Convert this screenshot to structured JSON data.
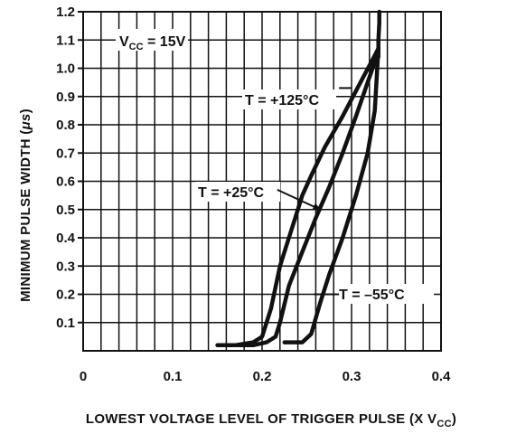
{
  "chart_data": {
    "type": "line",
    "xlabel": "LOWEST VOLTAGE LEVEL OF TRIGGER PULSE (X V",
    "xlabel_sub": "CC",
    "xlabel_end": ")",
    "ylabel": "MINIMUM PULSE WIDTH (",
    "ylabel_unit": "μs",
    "ylabel_end": ")",
    "xlim": [
      0,
      0.4
    ],
    "ylim": [
      0,
      1.2
    ],
    "x_ticks": [
      0,
      0.1,
      0.2,
      0.3,
      0.4
    ],
    "x_tick_labels": [
      "0",
      "0.1",
      "0.2",
      "0.3",
      "0.4"
    ],
    "y_ticks": [
      0.1,
      0.2,
      0.3,
      0.4,
      0.5,
      0.6,
      0.7,
      0.8,
      0.9,
      1.0,
      1.1,
      1.2
    ],
    "y_tick_labels": [
      "0.1",
      "0.2",
      "0.3",
      "0.4",
      "0.5",
      "0.6",
      "0.7",
      "0.8",
      "0.9",
      "1.0",
      "1.1",
      "1.2"
    ],
    "grid": true,
    "condition": {
      "main": "V",
      "sub": "CC",
      "rest": " = 15V"
    },
    "series": [
      {
        "name": "T = +125°C",
        "x": [
          0.15,
          0.17,
          0.19,
          0.2,
          0.21,
          0.22,
          0.23,
          0.24,
          0.245,
          0.255,
          0.27,
          0.29,
          0.31,
          0.325,
          0.33
        ],
        "y": [
          0.02,
          0.02,
          0.03,
          0.05,
          0.15,
          0.3,
          0.4,
          0.5,
          0.55,
          0.62,
          0.72,
          0.83,
          0.95,
          1.04,
          1.07
        ]
      },
      {
        "name": "T = +25°C",
        "x": [
          0.17,
          0.19,
          0.205,
          0.215,
          0.22,
          0.23,
          0.245,
          0.26,
          0.275,
          0.29,
          0.305,
          0.318,
          0.328,
          0.33
        ],
        "y": [
          0.02,
          0.02,
          0.03,
          0.05,
          0.1,
          0.23,
          0.35,
          0.47,
          0.58,
          0.7,
          0.83,
          0.95,
          1.04,
          1.07
        ]
      },
      {
        "name": "T = –55°C",
        "x": [
          0.225,
          0.245,
          0.255,
          0.265,
          0.275,
          0.29,
          0.305,
          0.318,
          0.326,
          0.33
        ],
        "y": [
          0.03,
          0.03,
          0.06,
          0.17,
          0.27,
          0.4,
          0.55,
          0.7,
          0.85,
          1.07
        ]
      },
      {
        "name": "",
        "x": [
          0.33,
          0.33,
          0.331,
          0.331
        ],
        "y": [
          1.04,
          1.1,
          1.16,
          1.2
        ]
      }
    ],
    "annotations": [
      {
        "text": "T = +125°C",
        "arrow_from": [
          0.286,
          0.93
        ],
        "arrow_to": [
          0.3,
          0.93
        ]
      },
      {
        "text": "T = +25°C",
        "arrow_from": [
          0.217,
          0.57
        ],
        "arrow_to": [
          0.265,
          0.5
        ]
      },
      {
        "text": "T = –55°C",
        "arrow_from": [
          0.286,
          0.2
        ],
        "arrow_to": [
          0.258,
          0.2
        ]
      }
    ]
  }
}
